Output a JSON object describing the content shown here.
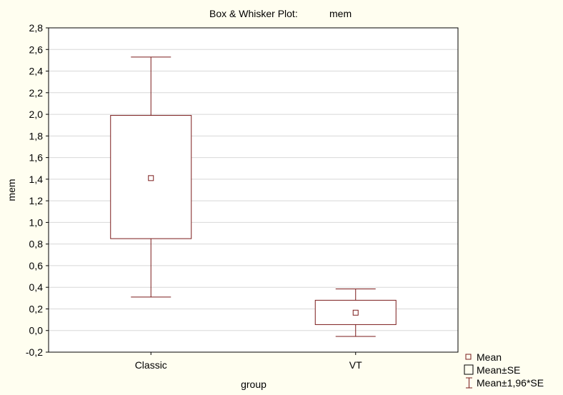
{
  "chart_data": {
    "type": "boxplot",
    "title": "Box & Whisker Plot:",
    "title_variable": "mem",
    "xlabel": "group",
    "ylabel": "mem",
    "ylim": [
      -0.2,
      2.8
    ],
    "yticks": [
      -0.2,
      0.0,
      0.2,
      0.4,
      0.6,
      0.8,
      1.0,
      1.2,
      1.4,
      1.6,
      1.8,
      2.0,
      2.2,
      2.4,
      2.6,
      2.8
    ],
    "ytick_labels": [
      "-0,2",
      "0,0",
      "0,2",
      "0,4",
      "0,6",
      "0,8",
      "1,0",
      "1,2",
      "1,4",
      "1,6",
      "1,8",
      "2,0",
      "2,2",
      "2,4",
      "2,6",
      "2,8"
    ],
    "grid": "horizontal",
    "categories": [
      "Classic",
      "VT"
    ],
    "groups": [
      {
        "name": "Classic",
        "mean": 1.41,
        "se_low": 0.85,
        "se_high": 1.99,
        "ci_low": 0.31,
        "ci_high": 2.53
      },
      {
        "name": "VT",
        "mean": 0.165,
        "se_low": 0.055,
        "se_high": 0.28,
        "ci_low": -0.055,
        "ci_high": 0.385
      }
    ],
    "legend": {
      "placement": "bottom-right",
      "entries": [
        "Mean",
        "Mean±SE",
        "Mean±1,96*SE"
      ]
    },
    "colors": {
      "box": "#7a1a1a",
      "grid": "#d8d8d8",
      "background": "#fffef0",
      "plot_background": "#ffffff"
    }
  }
}
